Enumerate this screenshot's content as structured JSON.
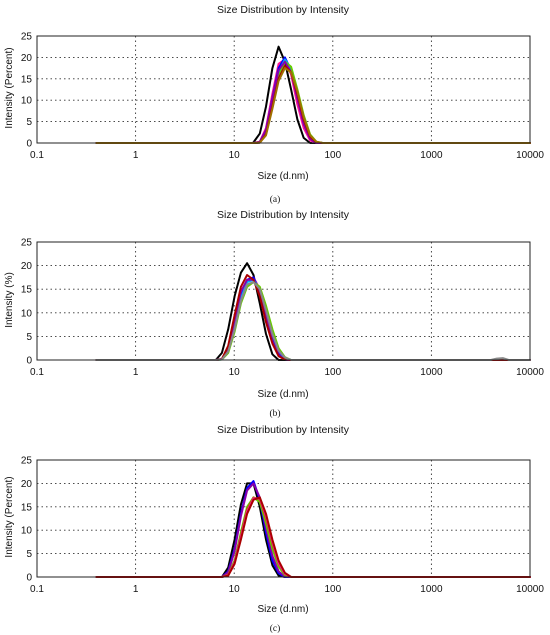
{
  "chart_data": [
    {
      "type": "line",
      "panel_label": "(a)",
      "title": "Size Distribution by Intensity",
      "xlabel": "Size (d.nm)",
      "ylabel": "Intensity (Percent)",
      "xscale": "log",
      "xlim": [
        0.1,
        10000
      ],
      "ylim": [
        0,
        25
      ],
      "x_ticks": [
        "0.1",
        "1",
        "10",
        "100",
        "1000",
        "10000"
      ],
      "y_ticks": [
        "0",
        "5",
        "10",
        "15",
        "20",
        "25"
      ],
      "grid": true,
      "series": [
        {
          "color": "#000000",
          "x": [
            0.4,
            15.5,
            18.2,
            21.0,
            24.4,
            28.2,
            32.7,
            37.8,
            43.8,
            50.7,
            58.8,
            68.1,
            78.8,
            10000
          ],
          "y": [
            0,
            0,
            2.2,
            8.5,
            17.5,
            22.5,
            19.0,
            12.5,
            5.5,
            1.2,
            0,
            0,
            0,
            0
          ]
        },
        {
          "color": "#ff1493",
          "x": [
            0.4,
            15.5,
            18.2,
            21.0,
            24.4,
            28.2,
            32.7,
            37.8,
            43.8,
            50.7,
            58.8,
            68.1,
            78.8,
            10000
          ],
          "y": [
            0,
            0,
            0.3,
            3.5,
            11.5,
            18.5,
            19.5,
            16.0,
            9.0,
            3.5,
            0.6,
            0,
            0,
            0
          ]
        },
        {
          "color": "#0000ff",
          "x": [
            0.4,
            15.5,
            18.2,
            21.0,
            24.4,
            28.2,
            32.7,
            37.8,
            43.8,
            50.7,
            58.8,
            68.1,
            78.8,
            10000
          ],
          "y": [
            0,
            0,
            0.2,
            3.0,
            10.5,
            17.5,
            20.0,
            17.0,
            10.5,
            4.5,
            1.0,
            0,
            0,
            0
          ]
        },
        {
          "color": "#00aaff",
          "x": [
            0.4,
            15.5,
            18.2,
            21.0,
            24.4,
            28.2,
            32.7,
            37.8,
            43.8,
            50.7,
            58.8,
            68.1,
            78.8,
            10000
          ],
          "y": [
            0,
            0,
            0.1,
            2.5,
            9.5,
            16.5,
            19.5,
            17.5,
            11.5,
            5.5,
            1.5,
            0.2,
            0,
            0
          ]
        },
        {
          "color": "#66cc00",
          "x": [
            0.4,
            15.5,
            18.2,
            21.0,
            24.4,
            28.2,
            32.7,
            37.8,
            43.8,
            50.7,
            58.8,
            68.1,
            78.8,
            10000
          ],
          "y": [
            0,
            0,
            0.1,
            2.2,
            8.8,
            15.5,
            19.0,
            17.8,
            12.5,
            6.5,
            2.0,
            0.3,
            0,
            0
          ]
        },
        {
          "color": "#8800aa",
          "x": [
            0.4,
            15.5,
            18.2,
            21.0,
            24.4,
            28.2,
            32.7,
            37.8,
            43.8,
            50.7,
            58.8,
            68.1,
            78.8,
            10000
          ],
          "y": [
            0,
            0,
            0.2,
            3.0,
            10.5,
            17.0,
            19.0,
            16.5,
            10.5,
            4.5,
            1.0,
            0,
            0,
            0
          ]
        },
        {
          "color": "#aa0000",
          "x": [
            0.4,
            15.5,
            18.2,
            21.0,
            24.4,
            28.2,
            32.7,
            37.8,
            43.8,
            50.7,
            58.8,
            68.1,
            78.8,
            10000
          ],
          "y": [
            0,
            0,
            0.1,
            2.0,
            8.5,
            15.0,
            18.0,
            16.5,
            11.5,
            5.5,
            1.5,
            0.2,
            0,
            0
          ]
        },
        {
          "color": "#a07000",
          "x": [
            0.4,
            15.5,
            18.2,
            21.0,
            24.4,
            28.2,
            32.7,
            37.8,
            43.8,
            50.7,
            58.8,
            68.1,
            78.8,
            10000
          ],
          "y": [
            0,
            0,
            0.1,
            1.8,
            8.0,
            14.5,
            17.5,
            16.5,
            12.0,
            6.0,
            1.8,
            0.3,
            0,
            0
          ]
        }
      ]
    },
    {
      "type": "line",
      "panel_label": "(b)",
      "title": "Size Distribution by Intensity",
      "xlabel": "Size (d.nm)",
      "ylabel": "Intensity (%)",
      "xscale": "log",
      "xlim": [
        0.1,
        10000
      ],
      "ylim": [
        0,
        25
      ],
      "x_ticks": [
        "0.1",
        "1",
        "10",
        "100",
        "1000",
        "10000"
      ],
      "y_ticks": [
        "0",
        "5",
        "10",
        "15",
        "20",
        "25"
      ],
      "grid": true,
      "series": [
        {
          "color": "#000000",
          "x": [
            0.4,
            6.5,
            7.5,
            8.7,
            10.1,
            11.7,
            13.5,
            15.7,
            18.2,
            21.0,
            24.4,
            28.2,
            32.7,
            10000
          ],
          "y": [
            0,
            0,
            1.5,
            6.5,
            13.5,
            18.5,
            20.5,
            18.0,
            12.0,
            5.5,
            1.2,
            0,
            0,
            0
          ]
        },
        {
          "color": "#ff1493",
          "x": [
            0.4,
            6.5,
            7.5,
            8.7,
            10.1,
            11.7,
            13.5,
            15.7,
            18.2,
            21.0,
            24.4,
            28.2,
            32.7,
            37.8,
            43.8,
            10000
          ],
          "y": [
            0,
            0,
            0.2,
            2.5,
            8.0,
            14.0,
            17.0,
            17.5,
            15.0,
            10.0,
            5.0,
            1.5,
            0.2,
            0,
            0,
            0
          ]
        },
        {
          "color": "#0000ff",
          "x": [
            0.4,
            6.5,
            7.5,
            8.7,
            10.1,
            11.7,
            13.5,
            15.7,
            18.2,
            21.0,
            24.4,
            28.2,
            32.7,
            37.8,
            43.8,
            10000
          ],
          "y": [
            0,
            0,
            0.2,
            2.5,
            8.0,
            14.0,
            17.0,
            17.5,
            14.5,
            9.5,
            4.5,
            1.2,
            0.1,
            0,
            0,
            0
          ]
        },
        {
          "color": "#00aaff",
          "x": [
            0.4,
            6.5,
            7.5,
            8.7,
            10.1,
            11.7,
            13.5,
            15.7,
            18.2,
            21.0,
            24.4,
            28.2,
            32.7,
            37.8,
            43.8,
            10000
          ],
          "y": [
            0,
            0,
            0.1,
            2.0,
            7.0,
            13.0,
            16.5,
            17.0,
            15.0,
            10.5,
            5.5,
            2.0,
            0.4,
            0,
            0,
            0
          ]
        },
        {
          "color": "#66cc00",
          "x": [
            0.4,
            6.5,
            7.5,
            8.7,
            10.1,
            11.7,
            13.5,
            15.7,
            18.2,
            21.0,
            24.4,
            28.2,
            32.7,
            37.8,
            43.8,
            10000
          ],
          "y": [
            0,
            0,
            0.1,
            1.5,
            6.0,
            12.0,
            15.5,
            16.5,
            15.5,
            11.5,
            6.5,
            2.5,
            0.6,
            0,
            0,
            0
          ]
        },
        {
          "color": "#8800aa",
          "x": [
            0.4,
            6.5,
            7.5,
            8.7,
            10.1,
            11.7,
            13.5,
            15.7,
            18.2,
            21.0,
            24.4,
            28.2,
            32.7,
            37.8,
            43.8,
            10000
          ],
          "y": [
            0,
            0,
            0.2,
            2.5,
            8.5,
            14.5,
            17.0,
            17.0,
            14.0,
            9.0,
            4.0,
            1.0,
            0.1,
            0,
            0,
            0
          ]
        },
        {
          "color": "#aa0000",
          "x": [
            0.4,
            6.5,
            7.5,
            8.7,
            10.1,
            11.7,
            13.5,
            15.7,
            18.2,
            21.0,
            24.4,
            28.2,
            32.7,
            37.8,
            43.8,
            10000
          ],
          "y": [
            0,
            0,
            0.2,
            3.0,
            9.5,
            15.5,
            18.0,
            17.0,
            13.5,
            8.0,
            3.5,
            0.8,
            0.1,
            0,
            0,
            0
          ]
        },
        {
          "color": "#888888",
          "x": [
            0.4,
            6.5,
            7.5,
            8.7,
            10.1,
            11.7,
            13.5,
            15.7,
            18.2,
            21.0,
            24.4,
            28.2,
            32.7,
            37.8,
            43.8,
            4000,
            4600,
            5300,
            6100,
            10000
          ],
          "y": [
            0,
            0,
            0.1,
            1.8,
            6.5,
            12.5,
            16.0,
            16.5,
            15.0,
            10.5,
            5.5,
            2.0,
            0.5,
            0,
            0,
            0,
            0.3,
            0.4,
            0,
            0
          ]
        }
      ]
    },
    {
      "type": "line",
      "panel_label": "(c)",
      "title": "Size Distribution by Intensity",
      "xlabel": "Size (d.nm)",
      "ylabel": "Intensity (Percent)",
      "xscale": "log",
      "xlim": [
        0.1,
        10000
      ],
      "ylim": [
        0,
        25
      ],
      "x_ticks": [
        "0.1",
        "1",
        "10",
        "100",
        "1000",
        "10000"
      ],
      "y_ticks": [
        "0",
        "5",
        "10",
        "15",
        "20",
        "25"
      ],
      "grid": true,
      "series": [
        {
          "color": "#000000",
          "x": [
            0.4,
            7.5,
            8.7,
            10.1,
            11.7,
            13.5,
            15.7,
            18.2,
            21.0,
            24.4,
            28.2,
            32.7,
            10000
          ],
          "y": [
            0,
            0,
            2.0,
            8.0,
            15.5,
            20.0,
            20.0,
            15.0,
            8.0,
            2.5,
            0.3,
            0,
            0
          ]
        },
        {
          "color": "#0000ff",
          "x": [
            0.4,
            7.5,
            8.7,
            10.1,
            11.7,
            13.5,
            15.7,
            18.2,
            21.0,
            24.4,
            28.2,
            32.7,
            37.8,
            10000
          ],
          "y": [
            0,
            0,
            1.2,
            6.0,
            13.5,
            19.0,
            20.5,
            16.5,
            9.5,
            3.5,
            0.8,
            0,
            0,
            0
          ]
        },
        {
          "color": "#8800aa",
          "x": [
            0.4,
            7.5,
            8.7,
            10.1,
            11.7,
            13.5,
            15.7,
            18.2,
            21.0,
            24.4,
            28.2,
            32.7,
            37.8,
            10000
          ],
          "y": [
            0,
            0,
            1.0,
            5.5,
            13.0,
            18.5,
            20.0,
            17.0,
            10.5,
            4.5,
            1.2,
            0.1,
            0,
            0
          ]
        },
        {
          "color": "#66cc00",
          "x": [
            0.4,
            7.5,
            8.7,
            10.1,
            11.7,
            13.5,
            15.7,
            18.2,
            21.0,
            24.4,
            28.2,
            32.7,
            37.8,
            43.8,
            10000
          ],
          "y": [
            0,
            0,
            0.5,
            3.5,
            9.5,
            15.0,
            17.0,
            16.0,
            11.5,
            6.0,
            2.2,
            0.4,
            0,
            0,
            0
          ]
        },
        {
          "color": "#a07000",
          "x": [
            0.4,
            7.5,
            8.7,
            10.1,
            11.7,
            13.5,
            15.7,
            18.2,
            21.0,
            24.4,
            28.2,
            32.7,
            37.8,
            43.8,
            10000
          ],
          "y": [
            0,
            0,
            0.5,
            3.2,
            9.0,
            14.5,
            17.0,
            16.5,
            12.5,
            7.0,
            2.8,
            0.6,
            0,
            0,
            0
          ]
        },
        {
          "color": "#ff1493",
          "x": [
            0.4,
            7.5,
            8.7,
            10.1,
            11.7,
            13.5,
            15.7,
            18.2,
            21.0,
            24.4,
            28.2,
            32.7,
            37.8,
            43.8,
            10000
          ],
          "y": [
            0,
            0,
            0.4,
            3.0,
            8.5,
            14.0,
            16.8,
            16.8,
            13.0,
            7.5,
            3.0,
            0.7,
            0,
            0,
            0
          ]
        },
        {
          "color": "#aa0000",
          "x": [
            0.4,
            7.5,
            8.7,
            10.1,
            11.7,
            13.5,
            15.7,
            18.2,
            21.0,
            24.4,
            28.2,
            32.7,
            37.8,
            43.8,
            10000
          ],
          "y": [
            0,
            0,
            0.3,
            2.8,
            8.0,
            13.5,
            16.5,
            17.0,
            13.5,
            8.0,
            3.5,
            0.9,
            0,
            0,
            0
          ]
        }
      ]
    }
  ]
}
